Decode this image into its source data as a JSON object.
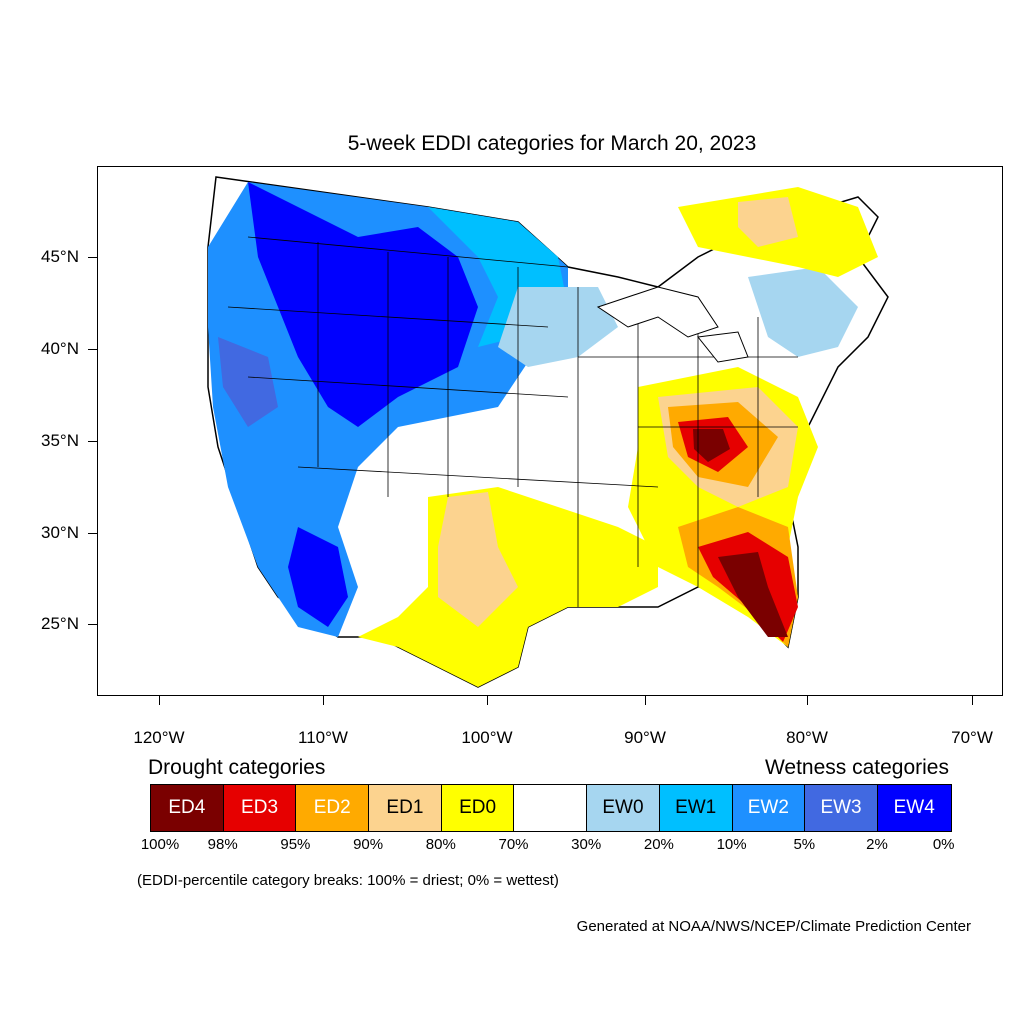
{
  "title": "5-week EDDI categories for March 20, 2023",
  "latitude_labels": [
    "45°N",
    "40°N",
    "35°N",
    "30°N",
    "25°N"
  ],
  "longitude_labels": [
    "120°W",
    "110°W",
    "100°W",
    "90°W",
    "80°W",
    "70°W"
  ],
  "legend": {
    "drought_title": "Drought categories",
    "wetness_title": "Wetness categories",
    "categories": [
      {
        "label": "ED4",
        "color": "#7a0000",
        "text_color": "#ffffff"
      },
      {
        "label": "ED3",
        "color": "#e60000",
        "text_color": "#ffffff"
      },
      {
        "label": "ED2",
        "color": "#ffaa00",
        "text_color": "#ffffff"
      },
      {
        "label": "ED1",
        "color": "#fcd38f",
        "text_color": "#000000"
      },
      {
        "label": "ED0",
        "color": "#ffff00",
        "text_color": "#000000"
      },
      {
        "label": "",
        "color": "#ffffff",
        "text_color": "#000000"
      },
      {
        "label": "EW0",
        "color": "#a6d6f0",
        "text_color": "#000000"
      },
      {
        "label": "EW1",
        "color": "#00bfff",
        "text_color": "#000000"
      },
      {
        "label": "EW2",
        "color": "#1e90ff",
        "text_color": "#ffffff"
      },
      {
        "label": "EW3",
        "color": "#4169e1",
        "text_color": "#ffffff"
      },
      {
        "label": "EW4",
        "color": "#0000ff",
        "text_color": "#ffffff"
      }
    ],
    "percentiles": [
      "100%",
      "98%",
      "95%",
      "90%",
      "80%",
      "70%",
      "30%",
      "20%",
      "10%",
      "5%",
      "2%",
      "0%"
    ]
  },
  "note": "(EDDI-percentile category breaks: 100% = driest; 0% = wettest)",
  "credit": "Generated at NOAA/NWS/NCEP/Climate Prediction Center"
}
